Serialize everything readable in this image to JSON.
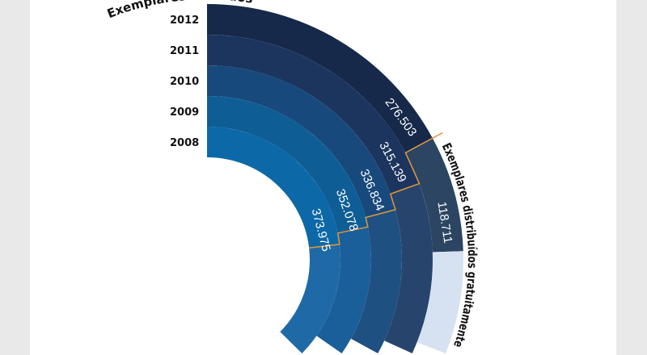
{
  "chart_data": {
    "type": "radial-bar",
    "series_labels": {
      "sold": "Exemplares vendidos",
      "free": "Exemplares distribuídos gratuitamente"
    },
    "categories": [
      "2012",
      "2011",
      "2010",
      "2009",
      "2008"
    ],
    "series": [
      {
        "name": "Exemplares vendidos",
        "values": [
          276503,
          315139,
          336834,
          352078,
          373975
        ],
        "value_labels": [
          "276.503",
          "315.139",
          "336.834",
          "352.078",
          "373.975"
        ]
      },
      {
        "name": "Exemplares distribuídos gratuitamente",
        "values": [
          118711,
          null,
          null,
          null,
          null
        ],
        "value_labels": [
          "118.711",
          "",
          "",
          "",
          ""
        ]
      }
    ],
    "colors": {
      "sold": [
        "#16294a",
        "#1c355f",
        "#18497c",
        "#0f5d95",
        "#0d68a8"
      ],
      "free": [
        "#2b4563",
        "#27456c",
        "#1f5082",
        "#1a5f99",
        "#1f6aa6"
      ],
      "other_2012": "#d6e2f1",
      "divider": "#e3953a"
    }
  }
}
